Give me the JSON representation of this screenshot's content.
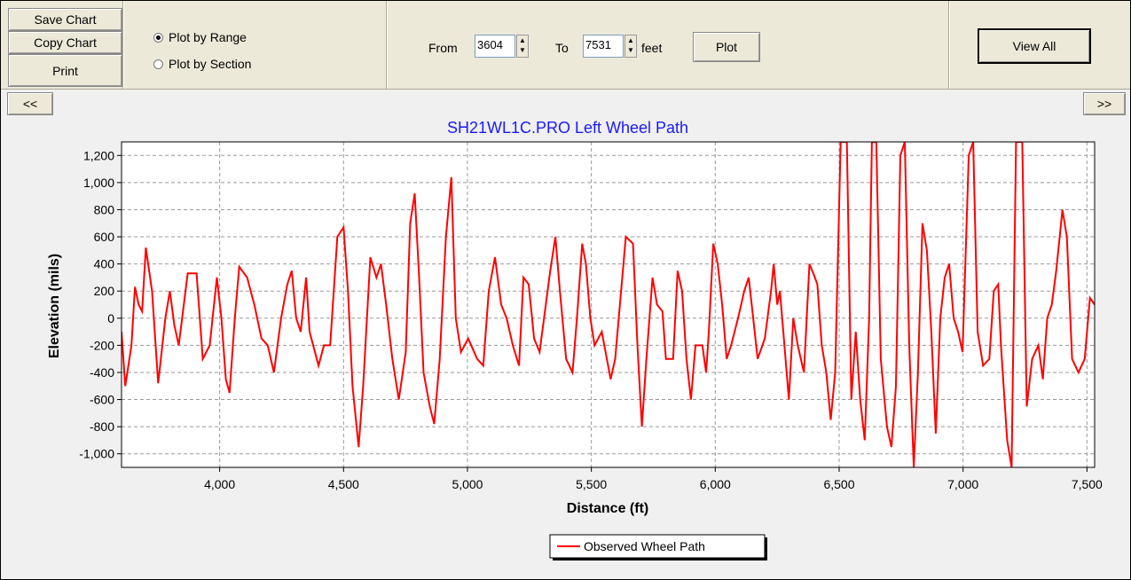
{
  "toolbar": {
    "buttons": [
      "Save Chart",
      "Copy Chart",
      "Print"
    ],
    "radios": [
      {
        "label": "Plot by Range",
        "checked": true
      },
      {
        "label": "Plot by Section",
        "checked": false
      }
    ],
    "from_label": "From",
    "from_value": "3604",
    "to_label": "To",
    "to_value": "7531",
    "unit": "feet",
    "plot_button": "Plot",
    "view_all": "View All"
  },
  "nav": {
    "prev": "<<",
    "next": ">>"
  },
  "chart_data": {
    "type": "line",
    "title": "SH21WL1C.PRO Left Wheel Path",
    "xlabel": "Distance (ft)",
    "ylabel": "Elevation (mils)",
    "x": [
      3604,
      3619,
      3644,
      3658,
      3673,
      3687,
      3702,
      3727,
      3752,
      3781,
      3799,
      3817,
      3835,
      3871,
      3907,
      3932,
      3960,
      3989,
      4007,
      4025,
      4040,
      4061,
      4079,
      4111,
      4140,
      4169,
      4194,
      4219,
      4248,
      4273,
      4291,
      4309,
      4327,
      4349,
      4363,
      4399,
      4421,
      4446,
      4475,
      4500,
      4518,
      4536,
      4561,
      4579,
      4608,
      4633,
      4651,
      4672,
      4697,
      4723,
      4751,
      4769,
      4787,
      4805,
      4823,
      4848,
      4866,
      4888,
      4913,
      4935,
      4953,
      4974,
      5003,
      5039,
      5064,
      5086,
      5111,
      5136,
      5158,
      5183,
      5208,
      5226,
      5247,
      5269,
      5291,
      5334,
      5355,
      5373,
      5398,
      5424,
      5442,
      5463,
      5478,
      5496,
      5513,
      5542,
      5578,
      5596,
      5639,
      5668,
      5686,
      5704,
      5722,
      5747,
      5765,
      5787,
      5801,
      5830,
      5848,
      5866,
      5884,
      5902,
      5920,
      5948,
      5963,
      5974,
      5992,
      6010,
      6028,
      6046,
      6064,
      6092,
      6117,
      6135,
      6153,
      6171,
      6200,
      6225,
      6236,
      6250,
      6261,
      6279,
      6297,
      6315,
      6333,
      6358,
      6380,
      6398,
      6412,
      6430,
      6448,
      6466,
      6484,
      6506,
      6531,
      6549,
      6567,
      6585,
      6603,
      6621,
      6632,
      6650,
      6668,
      6693,
      6711,
      6729,
      6747,
      6765,
      6783,
      6801,
      6818,
      6836,
      6854,
      6872,
      6890,
      6908,
      6926,
      6944,
      6962,
      6980,
      6998,
      7023,
      7041,
      7059,
      7081,
      7106,
      7124,
      7142,
      7153,
      7178,
      7196,
      7214,
      7239,
      7257,
      7279,
      7304,
      7322,
      7340,
      7358,
      7376,
      7401,
      7419,
      7440,
      7466,
      7491,
      7512,
      7531
    ],
    "series": [
      {
        "name": "Observed Wheel Path",
        "color": "#ff0000",
        "values": [
          -100,
          -500,
          -200,
          230,
          100,
          50,
          520,
          200,
          -480,
          0,
          200,
          -50,
          -200,
          330,
          330,
          -300,
          -200,
          300,
          0,
          -450,
          -550,
          0,
          380,
          300,
          100,
          -150,
          -200,
          -400,
          0,
          250,
          350,
          0,
          -100,
          300,
          -100,
          -350,
          -200,
          -200,
          600,
          670,
          200,
          -500,
          -950,
          -500,
          450,
          300,
          400,
          100,
          -300,
          -600,
          -250,
          700,
          920,
          300,
          -400,
          -650,
          -780,
          -300,
          600,
          1040,
          0,
          -250,
          -150,
          -300,
          -350,
          200,
          450,
          100,
          0,
          -200,
          -350,
          300,
          250,
          -150,
          -250,
          350,
          600,
          200,
          -300,
          -400,
          0,
          550,
          400,
          0,
          -200,
          -100,
          -450,
          -300,
          600,
          550,
          -200,
          -800,
          -300,
          300,
          100,
          50,
          -300,
          -300,
          350,
          200,
          -300,
          -600,
          -200,
          -200,
          -400,
          -100,
          550,
          400,
          100,
          -300,
          -200,
          0,
          200,
          300,
          0,
          -300,
          -150,
          200,
          400,
          100,
          200,
          -200,
          -600,
          0,
          -200,
          -400,
          400,
          320,
          250,
          -200,
          -400,
          -750,
          -400,
          1300,
          1300,
          -600,
          -100,
          -600,
          -900,
          0,
          1300,
          1300,
          -300,
          -800,
          -950,
          -500,
          1200,
          1300,
          -200,
          -1100,
          -400,
          700,
          500,
          -100,
          -850,
          0,
          300,
          400,
          0,
          -100,
          -250,
          1200,
          1300,
          -100,
          -350,
          -300,
          200,
          250,
          -200,
          -900,
          -1100,
          1300,
          1300,
          -650,
          -300,
          -200,
          -450,
          0,
          100,
          350,
          800,
          600,
          -300,
          -400,
          -300,
          150,
          100
        ]
      }
    ],
    "xlim": [
      3604,
      7531
    ],
    "xticks": [
      {
        "value": 4000,
        "label": "4,000"
      },
      {
        "value": 4500,
        "label": "4,500"
      },
      {
        "value": 5000,
        "label": "5,000"
      },
      {
        "value": 5500,
        "label": "5,500"
      },
      {
        "value": 6000,
        "label": "6,000"
      },
      {
        "value": 6500,
        "label": "6,500"
      },
      {
        "value": 7000,
        "label": "7,000"
      },
      {
        "value": 7500,
        "label": "7,500"
      }
    ],
    "ylim": [
      -1100,
      1300
    ],
    "yticks": [
      {
        "value": -1000,
        "label": "-1,000"
      },
      -800,
      -600,
      -400,
      -200,
      0,
      200,
      400,
      600,
      800,
      {
        "value": 1000,
        "label": "1,000"
      },
      {
        "value": 1200,
        "label": "1,200"
      }
    ],
    "grid": true,
    "legend": "bottom"
  }
}
